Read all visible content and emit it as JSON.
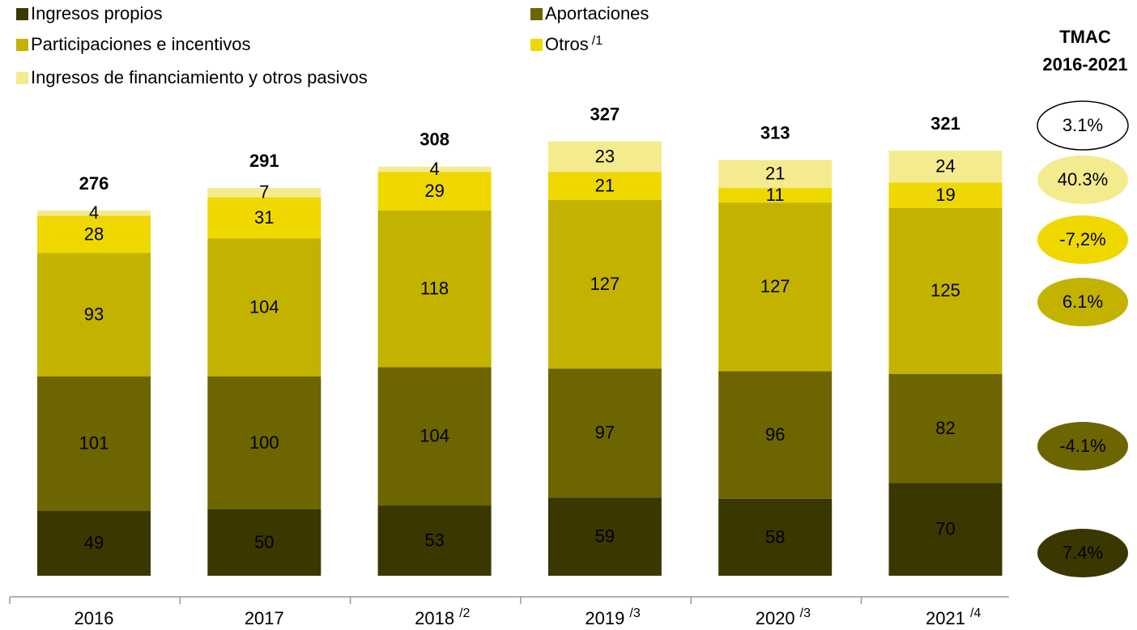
{
  "chart_data": {
    "type": "stacked_bar",
    "categories": [
      "2016",
      "2017",
      "2018",
      "2019",
      "2020",
      "2021"
    ],
    "category_notes": [
      null,
      null,
      "/2",
      "/3",
      "/3",
      "/4"
    ],
    "series": [
      {
        "name": "Ingresos propios",
        "color": "#3b3700",
        "values": [
          49,
          50,
          53,
          59,
          58,
          70
        ]
      },
      {
        "name": "Aportaciones",
        "color": "#6c6500",
        "values": [
          101,
          100,
          104,
          97,
          96,
          82
        ]
      },
      {
        "name": "Participaciones e incentivos",
        "color": "#c3b300",
        "values": [
          93,
          104,
          118,
          127,
          127,
          125
        ]
      },
      {
        "name": "Otros",
        "note": "/1",
        "color": "#eed800",
        "values": [
          28,
          31,
          29,
          21,
          11,
          19
        ]
      },
      {
        "name": "Ingresos de financiamiento y otros pasivos",
        "color": "#f3eb8e",
        "values": [
          4,
          7,
          4,
          23,
          21,
          24
        ]
      }
    ],
    "totals": [
      276,
      291,
      308,
      327,
      313,
      321
    ],
    "tmac_title": [
      "TMAC",
      "2016-2021"
    ],
    "tmac": {
      "values": [
        3.1,
        40.3,
        -7.2,
        6.1,
        -4.1,
        7.4
      ],
      "value_labels": [
        "3.1%",
        "40.3%",
        "-7,2%",
        "6.1%",
        "-4.1%",
        "7.4%"
      ],
      "colors": [
        "#ffffff",
        "#f3eb8e",
        "#eed800",
        "#c3b300",
        "#6c6500",
        "#3b3700"
      ]
    }
  }
}
